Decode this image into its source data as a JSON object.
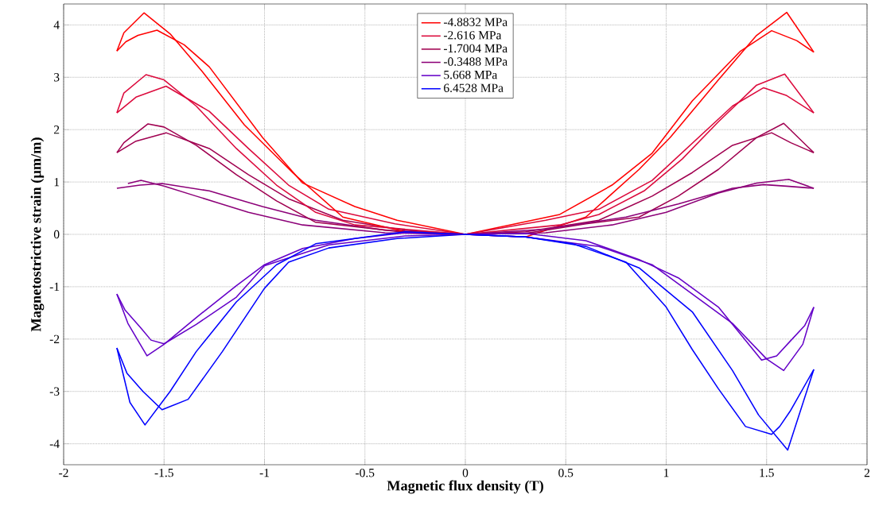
{
  "chart_data": {
    "type": "line",
    "xlabel": "Magnetic flux density (T)",
    "ylabel": "Magnetostrictive strain (µm/m)",
    "xlim": [
      -2,
      2
    ],
    "ylim": [
      -4.4,
      4.4
    ],
    "xticks": [
      -2,
      -1.5,
      -1,
      -0.5,
      0,
      0.5,
      1,
      1.5,
      2
    ],
    "yticks": [
      -4,
      -3,
      -2,
      -1,
      0,
      1,
      2,
      3,
      4
    ],
    "grid": true,
    "legend": "top",
    "marker": "none",
    "line_style": "solid",
    "series": [
      {
        "name": "-4.8832 MPa",
        "color": "#ff0000",
        "x": [
          -1.735,
          -1.69,
          -1.63,
          -1.535,
          -1.4,
          -1.275,
          -1.01,
          -0.81,
          -0.55,
          -0.34,
          0,
          0.3,
          0.6,
          0.865,
          1.02,
          1.26,
          1.45,
          1.6,
          1.735
        ],
        "values": [
          3.5,
          3.68,
          3.8,
          3.9,
          3.62,
          3.2,
          1.85,
          0.98,
          0.53,
          0.27,
          0,
          -0.05,
          0.33,
          1.24,
          1.85,
          2.95,
          3.8,
          4.24,
          3.48
        ]
      },
      {
        "name": "-2.616 MPa",
        "color": "#dc0a3c",
        "x": [
          -1.735,
          -1.64,
          -1.49,
          -1.275,
          -1.08,
          -0.88,
          -0.68,
          -0.35,
          0,
          0.47,
          0.665,
          0.89,
          1.08,
          1.26,
          1.45,
          1.59,
          1.735
        ],
        "values": [
          2.32,
          2.62,
          2.83,
          2.35,
          1.64,
          0.94,
          0.48,
          0.2,
          0,
          0.18,
          0.38,
          0.83,
          1.44,
          2.15,
          2.85,
          3.06,
          2.32
        ]
      },
      {
        "name": "-1.7004 MPa",
        "color": "#a00050",
        "x": [
          -1.735,
          -1.64,
          -1.49,
          -1.275,
          -1.08,
          -0.88,
          -0.61,
          -0.3,
          0,
          0.3,
          0.6,
          0.865,
          1.06,
          1.26,
          1.45,
          1.585,
          1.735
        ],
        "values": [
          1.56,
          1.78,
          1.94,
          1.64,
          1.14,
          0.68,
          0.27,
          0.08,
          0,
          0.02,
          0.2,
          0.33,
          0.73,
          1.24,
          1.85,
          2.12,
          1.56
        ]
      },
      {
        "name": "-0.3488 MPa",
        "color": "#8c0078",
        "x": [
          -1.735,
          -1.62,
          -1.51,
          -1.275,
          -1.01,
          -0.745,
          -0.4,
          0,
          0.4,
          0.73,
          1.0,
          1.26,
          1.45,
          1.61,
          1.735
        ],
        "values": [
          0.88,
          0.94,
          0.97,
          0.83,
          0.53,
          0.27,
          0.08,
          0,
          0.03,
          0.18,
          0.42,
          0.79,
          0.98,
          1.05,
          0.88
        ]
      },
      {
        "name": "5.668 MPa",
        "color": "#6400c8",
        "x": [
          -1.735,
          -1.695,
          -1.615,
          -1.565,
          -1.5,
          -1.34,
          -1.14,
          -1.0,
          -0.68,
          -0.3,
          0,
          0.3,
          0.665,
          0.93,
          1.13,
          1.33,
          1.5,
          1.585,
          1.68,
          1.735
        ],
        "values": [
          -1.14,
          -1.44,
          -1.79,
          -2.02,
          -2.09,
          -1.72,
          -1.2,
          -0.6,
          -0.2,
          -0.03,
          0,
          -0.05,
          -0.23,
          -0.58,
          -1.14,
          -1.7,
          -2.38,
          -2.6,
          -2.1,
          -1.39
        ]
      },
      {
        "name": "6.4528 MPa",
        "color": "#0000ff",
        "x": [
          -1.735,
          -1.685,
          -1.605,
          -1.51,
          -1.38,
          -1.21,
          -1.0,
          -0.88,
          -0.68,
          -0.34,
          0,
          0.3,
          0.6,
          0.865,
          1.13,
          1.33,
          1.46,
          1.605,
          1.735
        ],
        "values": [
          -2.17,
          -2.65,
          -3.0,
          -3.35,
          -3.15,
          -2.24,
          -1.03,
          -0.53,
          -0.26,
          -0.08,
          0,
          -0.05,
          -0.23,
          -0.64,
          -1.48,
          -2.6,
          -3.45,
          -4.12,
          -2.58
        ]
      },
      {
        "color": "#ff0000",
        "x": [
          -1.735,
          -1.7,
          -1.6,
          -1.47,
          -1.31,
          -1.1,
          -0.86,
          -0.61,
          -0.3,
          0,
          0.47,
          0.73,
          0.93,
          1.13,
          1.37,
          1.525,
          1.65,
          1.735
        ],
        "values": [
          3.5,
          3.85,
          4.23,
          3.83,
          3.11,
          2.09,
          1.18,
          0.33,
          0.05,
          0,
          0.38,
          0.94,
          1.55,
          2.55,
          3.5,
          3.89,
          3.7,
          3.48
        ]
      },
      {
        "color": "#dc0a3c",
        "x": [
          -1.735,
          -1.7,
          -1.59,
          -1.5,
          -1.34,
          -1.14,
          -0.94,
          -0.745,
          -0.55,
          0,
          0.4,
          0.665,
          0.93,
          1.13,
          1.33,
          1.485,
          1.6,
          1.735
        ],
        "values": [
          2.32,
          2.7,
          3.05,
          2.95,
          2.45,
          1.64,
          0.94,
          0.42,
          0.18,
          0,
          0.27,
          0.48,
          1.03,
          1.74,
          2.45,
          2.8,
          2.65,
          2.32
        ]
      },
      {
        "color": "#a00050",
        "x": [
          -1.735,
          -1.7,
          -1.58,
          -1.5,
          -1.34,
          -1.14,
          -0.94,
          -0.745,
          -0.3,
          0,
          0.3,
          0.665,
          0.93,
          1.13,
          1.33,
          1.525,
          1.62,
          1.735
        ],
        "values": [
          1.56,
          1.75,
          2.11,
          2.05,
          1.7,
          1.14,
          0.64,
          0.23,
          0.04,
          0,
          0.05,
          0.27,
          0.73,
          1.18,
          1.7,
          1.94,
          1.75,
          1.56
        ]
      },
      {
        "color": "#8c0078",
        "x": [
          -1.68,
          -1.615,
          -1.5,
          -1.34,
          -1.08,
          -0.81,
          -0.4,
          0,
          0.4,
          0.8,
          1.06,
          1.33,
          1.485,
          1.6,
          1.735
        ],
        "values": [
          0.97,
          1.03,
          0.92,
          0.73,
          0.42,
          0.18,
          0.03,
          0,
          0.1,
          0.33,
          0.58,
          0.88,
          0.95,
          0.92,
          0.88
        ]
      },
      {
        "color": "#6400c8",
        "x": [
          -1.735,
          -1.68,
          -1.585,
          -1.5,
          -1.34,
          -1.14,
          -1.0,
          -0.81,
          -0.55,
          -0.3,
          0,
          0.3,
          0.6,
          0.865,
          1.06,
          1.26,
          1.475,
          1.55,
          1.615,
          1.69,
          1.735
        ],
        "values": [
          -1.14,
          -1.7,
          -2.32,
          -2.1,
          -1.59,
          -0.98,
          -0.58,
          -0.27,
          -0.08,
          0.03,
          0,
          0.02,
          -0.12,
          -0.48,
          -0.83,
          -1.39,
          -2.4,
          -2.32,
          -2.05,
          -1.74,
          -1.39
        ]
      },
      {
        "color": "#0000ff",
        "x": [
          -1.735,
          -1.67,
          -1.595,
          -1.47,
          -1.34,
          -1.14,
          -0.94,
          -0.745,
          -0.3,
          0,
          0.3,
          0.535,
          0.8,
          1.0,
          1.13,
          1.26,
          1.395,
          1.525,
          1.565,
          1.62,
          1.735
        ],
        "values": [
          -2.17,
          -3.21,
          -3.64,
          -3.0,
          -2.24,
          -1.29,
          -0.58,
          -0.18,
          0.05,
          0,
          -0.05,
          -0.18,
          -0.53,
          -1.39,
          -2.2,
          -2.95,
          -3.67,
          -3.82,
          -3.67,
          -3.36,
          -2.58
        ]
      }
    ]
  }
}
